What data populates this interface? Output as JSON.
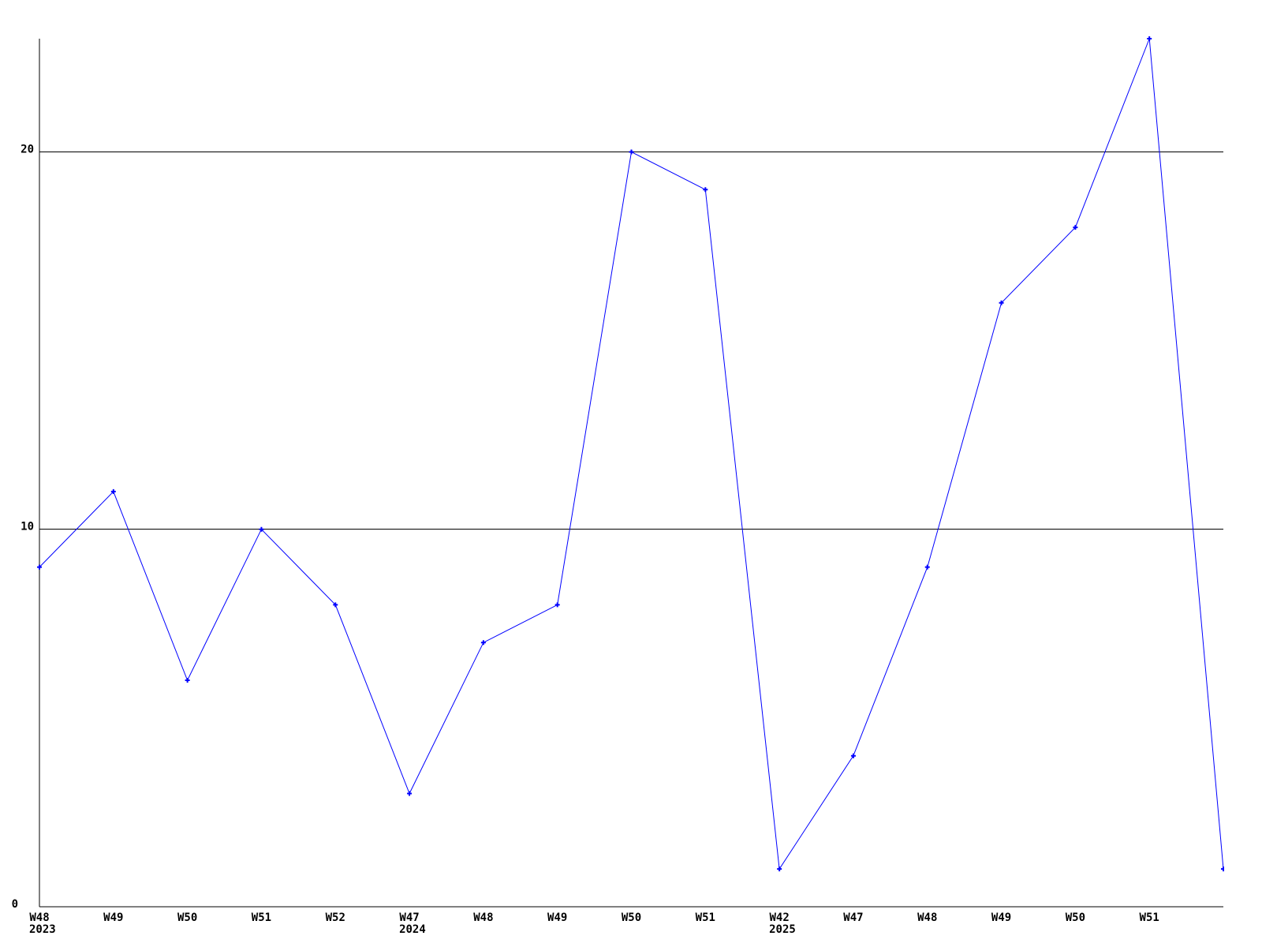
{
  "chart_data": {
    "type": "line",
    "title": "",
    "xlabel": "",
    "ylabel": "",
    "x_tick_labels": [
      "W48",
      "W49",
      "W50",
      "W51",
      "W52",
      "W47",
      "W48",
      "W49",
      "W50",
      "W51",
      "W42",
      "W47",
      "W48",
      "W49",
      "W50",
      "W51",
      ""
    ],
    "year_labels": [
      {
        "tick_index": 0,
        "text": "2023"
      },
      {
        "tick_index": 5,
        "text": "2024"
      },
      {
        "tick_index": 10,
        "text": "2025"
      }
    ],
    "values": [
      9,
      11,
      6,
      10,
      8,
      3,
      7,
      8,
      20,
      19,
      1,
      4,
      9,
      16,
      18,
      23,
      1
    ],
    "y_ticks": [
      0,
      10,
      20
    ],
    "ylim": [
      0,
      23
    ],
    "grid": "horizontal",
    "legend": "none",
    "marker": "plus",
    "line_color": "#0000ff",
    "axis_color": "#000000",
    "background_color": "#ffffff"
  }
}
